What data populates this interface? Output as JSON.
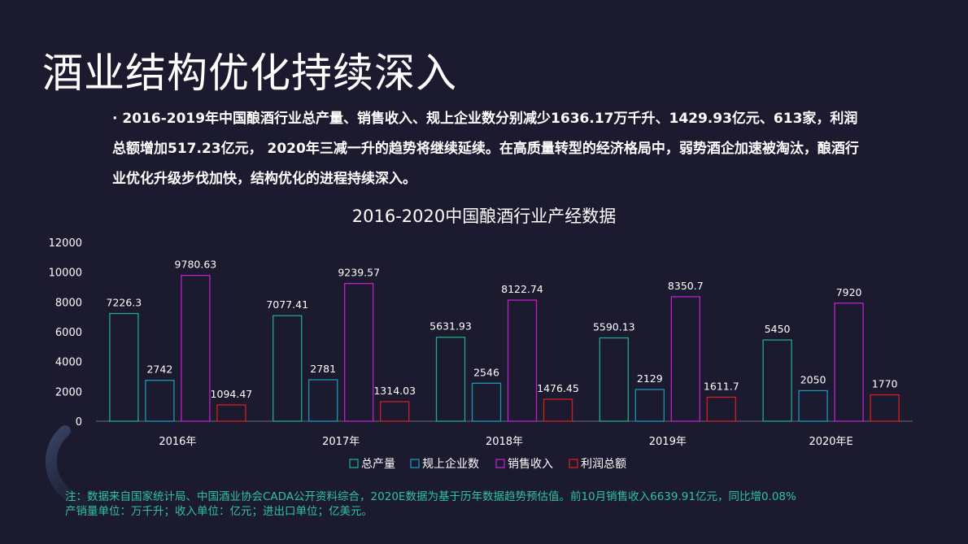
{
  "title": "酒业结构优化持续深入",
  "summary": "· 2016-2019年中国酿酒行业总产量、销售收入、规上企业数分别减少1636.17万千升、1429.93亿元、613家，利润总额增加517.23亿元， 2020年三减一升的趋势将继续延续。在高质量转型的经济格局中，弱势酒企加速被淘汰，酿酒行业优化升级步伐加快，结构优化的进程持续深入。",
  "chart_data": {
    "type": "bar",
    "title": "2016-2020中国酿酒行业产经数据",
    "categories": [
      "2016年",
      "2017年",
      "2018年",
      "2019年",
      "2020年E"
    ],
    "series": [
      {
        "name": "总产量",
        "values": [
          7226.3,
          7077.41,
          5631.93,
          5590.13,
          5450
        ],
        "labels": [
          "7226.3",
          "7077.41",
          "5631.93",
          "5590.13",
          "5450"
        ],
        "color": "#1fa88a"
      },
      {
        "name": "规上企业数",
        "values": [
          2742,
          2781,
          2546,
          2129,
          2050
        ],
        "labels": [
          "2742",
          "2781",
          "2546",
          "2129",
          "2050"
        ],
        "color": "#1a95b8"
      },
      {
        "name": "销售收入",
        "values": [
          9780.63,
          9239.57,
          8122.74,
          8350.7,
          7920
        ],
        "labels": [
          "9780.63",
          "9239.57",
          "8122.74",
          "8350.7",
          "7920"
        ],
        "color": "#c11fc9"
      },
      {
        "name": "利润总额",
        "values": [
          1094.47,
          1314.03,
          1476.45,
          1611.7,
          1770
        ],
        "labels": [
          "1094.47",
          "1314.03",
          "1476.45",
          "1611.7",
          "1770"
        ],
        "color": "#d41d25"
      }
    ],
    "yticks": [
      "0",
      "2000",
      "4000",
      "6000",
      "8000",
      "10000",
      "12000"
    ],
    "ylim": [
      0,
      12000
    ],
    "grid": false,
    "legend": "bottom"
  },
  "note": {
    "line1": "注：数据来自国家统计局、中国酒业协会CADA公开资料综合，2020E数据为基于历年数据趋势预估值。前10月销售收入6639.91亿元，同比增0.08%",
    "line2": "产销量单位：万千升；收入单位：亿元；进出口单位；亿美元。"
  }
}
